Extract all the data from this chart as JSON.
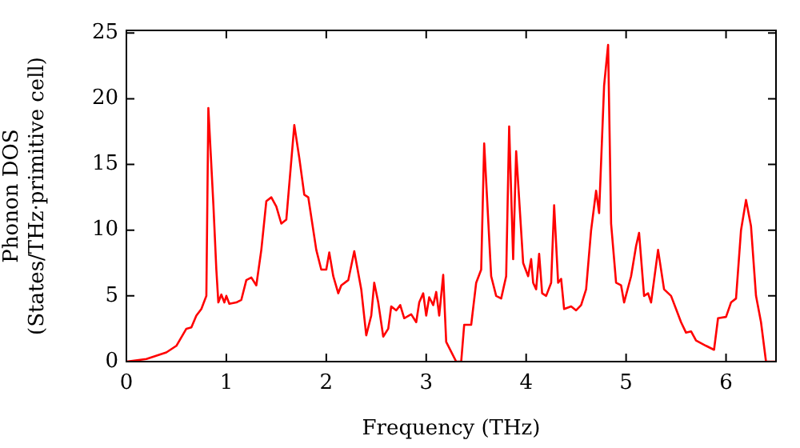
{
  "chart_data": {
    "type": "line",
    "xlabel": "Frequency (THz)",
    "ylabel": "Phonon DOS\n(States/THz·primitive cell)",
    "xlim": [
      0,
      6.5
    ],
    "ylim": [
      0,
      25.2
    ],
    "xticks": [
      0,
      1,
      2,
      3,
      4,
      5,
      6
    ],
    "yticks": [
      0,
      5,
      10,
      15,
      20,
      25
    ],
    "grid": false,
    "legend": false,
    "marker": "none",
    "line_style": "solid",
    "series": [
      {
        "color": "#ff0000",
        "x": [
          0,
          0.2,
          0.4,
          0.5,
          0.6,
          0.65,
          0.7,
          0.75,
          0.8,
          0.82,
          0.87,
          0.9,
          0.92,
          0.95,
          0.98,
          1.0,
          1.03,
          1.1,
          1.15,
          1.2,
          1.25,
          1.3,
          1.35,
          1.4,
          1.45,
          1.5,
          1.55,
          1.6,
          1.68,
          1.73,
          1.78,
          1.82,
          1.9,
          1.95,
          2.0,
          2.03,
          2.07,
          2.12,
          2.15,
          2.22,
          2.28,
          2.35,
          2.4,
          2.45,
          2.48,
          2.52,
          2.57,
          2.62,
          2.65,
          2.7,
          2.74,
          2.78,
          2.85,
          2.9,
          2.93,
          2.97,
          3.0,
          3.03,
          3.07,
          3.1,
          3.13,
          3.17,
          3.2,
          3.3,
          3.35,
          3.38,
          3.45,
          3.5,
          3.55,
          3.58,
          3.65,
          3.7,
          3.75,
          3.8,
          3.83,
          3.87,
          3.9,
          3.97,
          4.02,
          4.05,
          4.07,
          4.1,
          4.13,
          4.16,
          4.2,
          4.25,
          4.28,
          4.32,
          4.35,
          4.38,
          4.45,
          4.5,
          4.55,
          4.6,
          4.65,
          4.7,
          4.73,
          4.78,
          4.82,
          4.85,
          4.9,
          4.95,
          4.98,
          5.05,
          5.1,
          5.13,
          5.18,
          5.22,
          5.25,
          5.32,
          5.38,
          5.45,
          5.5,
          5.55,
          5.6,
          5.65,
          5.7,
          5.8,
          5.88,
          5.92,
          6.0,
          6.05,
          6.1,
          6.15,
          6.2,
          6.25,
          6.3,
          6.35,
          6.4,
          6.5
        ],
        "values": [
          0,
          0.2,
          0.7,
          1.2,
          2.5,
          2.6,
          3.5,
          4,
          5,
          19.3,
          12,
          7,
          4.5,
          5.1,
          4.5,
          5,
          4.4,
          4.5,
          4.7,
          6.2,
          6.4,
          5.8,
          8.5,
          12.2,
          12.5,
          11.8,
          10.5,
          10.8,
          18,
          15.5,
          12.7,
          12.5,
          8.5,
          7,
          7,
          8.3,
          6.5,
          5.2,
          5.8,
          6.2,
          8.4,
          5.5,
          2,
          3.5,
          6,
          4.5,
          1.9,
          2.5,
          4.2,
          3.9,
          4.3,
          3.3,
          3.6,
          3,
          4.5,
          5.2,
          3.5,
          4.9,
          4.3,
          5.3,
          3.5,
          6.6,
          1.5,
          0,
          0,
          2.8,
          2.8,
          6,
          7,
          16.6,
          6.5,
          5,
          4.8,
          6.5,
          17.9,
          7.8,
          16,
          7.5,
          6.5,
          7.8,
          6,
          5.5,
          8.2,
          5.2,
          5,
          6,
          11.9,
          6,
          6.3,
          4,
          4.2,
          3.9,
          4.3,
          5.5,
          10,
          13,
          11.3,
          21,
          24.1,
          10.5,
          6,
          5.8,
          4.5,
          6.5,
          8.8,
          9.8,
          5,
          5.2,
          4.5,
          8.5,
          5.5,
          5,
          4,
          3,
          2.2,
          2.3,
          1.6,
          1.2,
          0.9,
          3.3,
          3.4,
          4.5,
          4.8,
          10,
          12.3,
          10.3,
          5,
          3,
          0,
          0
        ]
      }
    ]
  }
}
